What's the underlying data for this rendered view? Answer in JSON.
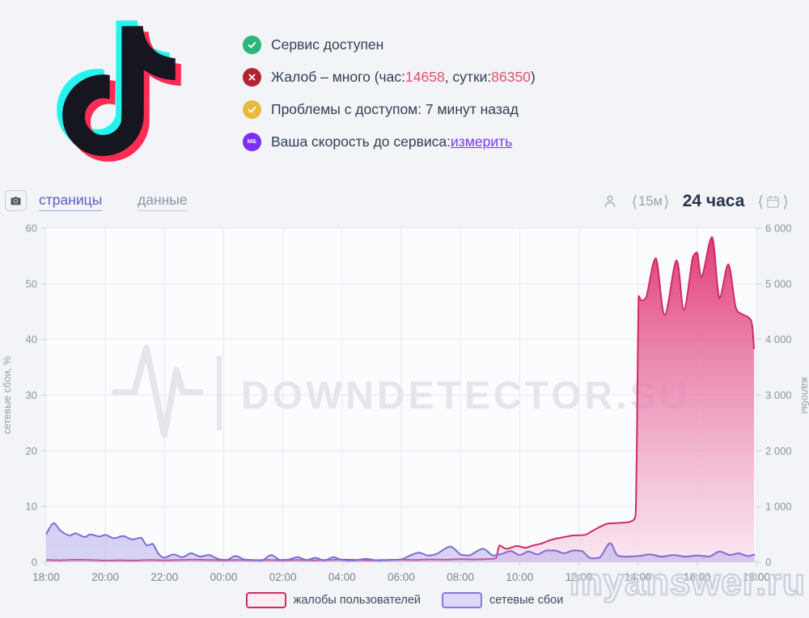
{
  "service": {
    "name": "TikTok"
  },
  "logo_colors": {
    "cyan": "#25f4ee",
    "red": "#fe2c55",
    "black": "#15161f"
  },
  "status": {
    "items": [
      {
        "icon": "check",
        "icon_color": "#2db57a",
        "text": "Сервис доступен"
      },
      {
        "icon": "cross",
        "icon_color": "#b22430",
        "text_prefix": "Жалоб – много (час: ",
        "hour_value": "14658",
        "text_mid": ", сутки: ",
        "day_value": "86350",
        "text_suffix": ")",
        "value_color": "#e0506e"
      },
      {
        "icon": "check",
        "icon_color": "#e9b93e",
        "text": "Проблемы с доступом: 7 минут назад"
      },
      {
        "icon": "speed-badge",
        "icon_color": "#7a2ff2",
        "badge_text": "МБ",
        "text": "Ваша скорость до сервиса: ",
        "link": "измерить"
      }
    ]
  },
  "toolbar": {
    "tabs": [
      {
        "label": "страницы",
        "active": true
      },
      {
        "label": "данные",
        "active": false
      }
    ],
    "interval_label": "15м",
    "range_label": "24 часа",
    "bracket_left": "⟨",
    "bracket_right": "⟩"
  },
  "legend": [
    {
      "label": "жалобы пользователей",
      "border": "#cf2b64",
      "fill": "#fcedf3"
    },
    {
      "label": "сетевые сбои",
      "border": "#8979dd",
      "fill": "#ded7f6"
    }
  ],
  "watermarks": {
    "chart": "DOWNDETECTOR.SU",
    "photo": "myanswer.ru"
  },
  "chart_data": {
    "type": "area",
    "x_ticks": [
      "18:00",
      "20:00",
      "22:00",
      "00:00",
      "02:00",
      "04:00",
      "06:00",
      "08:00",
      "10:00",
      "12:00",
      "14:00",
      "16:00",
      "18:00"
    ],
    "x_range_hours": [
      0,
      24
    ],
    "grid": true,
    "legend_position": "bottom",
    "left_axis": {
      "title": "сетевые сбои, %",
      "min": 0,
      "max": 60,
      "ticks": [
        "0",
        "10",
        "20",
        "30",
        "40",
        "50",
        "60"
      ]
    },
    "right_axis": {
      "title": "жалобы",
      "min": 0,
      "max": 6000,
      "ticks": [
        "0",
        "1 000",
        "2 000",
        "3 000",
        "4 000",
        "5 000",
        "6 000"
      ]
    },
    "series": [
      {
        "name": "жалобы пользователей",
        "axis": "right",
        "stroke": "#cf2b64",
        "gradient": [
          [
            "0",
            "rgba(223,47,109,0.95)"
          ],
          [
            "0.4",
            "rgba(231,107,157,0.78)"
          ],
          [
            "0.75",
            "rgba(242,183,210,0.8)"
          ],
          [
            "1",
            "rgba(249,230,240,0.9)"
          ]
        ],
        "points": [
          [
            0,
            40
          ],
          [
            0.5,
            35
          ],
          [
            1,
            45
          ],
          [
            1.5,
            40
          ],
          [
            2,
            30
          ],
          [
            2.5,
            35
          ],
          [
            3,
            30
          ],
          [
            3.5,
            40
          ],
          [
            4,
            35
          ],
          [
            4.5,
            40
          ],
          [
            5,
            45
          ],
          [
            5.5,
            40
          ],
          [
            6,
            35
          ],
          [
            6.5,
            40
          ],
          [
            7,
            35
          ],
          [
            7.5,
            40
          ],
          [
            8,
            35
          ],
          [
            8.5,
            40
          ],
          [
            9,
            35
          ],
          [
            9.5,
            40
          ],
          [
            10,
            45
          ],
          [
            10.5,
            40
          ],
          [
            11,
            35
          ],
          [
            11.5,
            40
          ],
          [
            12,
            45
          ],
          [
            12.5,
            40
          ],
          [
            13,
            50
          ],
          [
            13.5,
            45
          ],
          [
            14,
            55
          ],
          [
            14.5,
            50
          ],
          [
            15,
            60
          ],
          [
            15.2,
            70
          ],
          [
            15.32,
            300
          ],
          [
            15.55,
            240
          ],
          [
            15.9,
            290
          ],
          [
            16.2,
            260
          ],
          [
            16.45,
            300
          ],
          [
            16.7,
            330
          ],
          [
            17,
            390
          ],
          [
            17.2,
            420
          ],
          [
            17.5,
            450
          ],
          [
            17.8,
            480
          ],
          [
            18.2,
            490
          ],
          [
            18.45,
            560
          ],
          [
            18.7,
            630
          ],
          [
            18.95,
            690
          ],
          [
            19.2,
            700
          ],
          [
            19.5,
            710
          ],
          [
            19.75,
            730
          ],
          [
            19.92,
            850
          ],
          [
            20.02,
            4780
          ],
          [
            20.12,
            4700
          ],
          [
            20.28,
            4760
          ],
          [
            20.6,
            5460
          ],
          [
            20.9,
            4440
          ],
          [
            21.3,
            5420
          ],
          [
            21.55,
            4530
          ],
          [
            21.85,
            5480
          ],
          [
            22,
            5560
          ],
          [
            22.15,
            5120
          ],
          [
            22.5,
            5840
          ],
          [
            22.75,
            4740
          ],
          [
            23.05,
            5350
          ],
          [
            23.3,
            4580
          ],
          [
            23.5,
            4460
          ],
          [
            23.72,
            4400
          ],
          [
            23.85,
            4280
          ],
          [
            23.92,
            3830
          ]
        ]
      },
      {
        "name": "сетевые сбои",
        "axis": "left",
        "stroke": "#7f6dd2",
        "gradient": [
          [
            "0",
            "rgba(139,123,220,0.58)"
          ],
          [
            "1",
            "rgba(169,155,234,0.42)"
          ]
        ],
        "points": [
          [
            0,
            5
          ],
          [
            0.25,
            7
          ],
          [
            0.5,
            5.6
          ],
          [
            0.8,
            4.8
          ],
          [
            1,
            5.2
          ],
          [
            1.3,
            4.5
          ],
          [
            1.5,
            5
          ],
          [
            1.8,
            4.6
          ],
          [
            2,
            4.9
          ],
          [
            2.3,
            4.3
          ],
          [
            2.6,
            4.7
          ],
          [
            2.9,
            4.1
          ],
          [
            3.2,
            4.4
          ],
          [
            3.4,
            3
          ],
          [
            3.6,
            3.3
          ],
          [
            3.8,
            1.5
          ],
          [
            4,
            0.8
          ],
          [
            4.3,
            1.4
          ],
          [
            4.6,
            0.9
          ],
          [
            4.9,
            1.6
          ],
          [
            5.2,
            1
          ],
          [
            5.5,
            1.3
          ],
          [
            5.8,
            0.6
          ],
          [
            6.1,
            0.4
          ],
          [
            6.4,
            1.1
          ],
          [
            6.7,
            0.5
          ],
          [
            7,
            0.4
          ],
          [
            7.3,
            0.3
          ],
          [
            7.6,
            1.3
          ],
          [
            7.9,
            0.4
          ],
          [
            8.2,
            0.5
          ],
          [
            8.5,
            0.9
          ],
          [
            8.8,
            0.4
          ],
          [
            9.1,
            0.8
          ],
          [
            9.4,
            0.3
          ],
          [
            9.7,
            0.9
          ],
          [
            10,
            0.4
          ],
          [
            10.4,
            0.3
          ],
          [
            10.8,
            0.6
          ],
          [
            11.2,
            0.3
          ],
          [
            11.6,
            0.4
          ],
          [
            12,
            0.5
          ],
          [
            12.3,
            1.2
          ],
          [
            12.6,
            1.7
          ],
          [
            12.9,
            1.2
          ],
          [
            13.2,
            1.5
          ],
          [
            13.65,
            2.8
          ],
          [
            14,
            1.4
          ],
          [
            14.3,
            1.2
          ],
          [
            14.75,
            2.4
          ],
          [
            15.1,
            1.2
          ],
          [
            15.4,
            1.5
          ],
          [
            15.7,
            2
          ],
          [
            16,
            1.3
          ],
          [
            16.3,
            1.9
          ],
          [
            16.6,
            1.4
          ],
          [
            16.9,
            2.1
          ],
          [
            17.2,
            2.1
          ],
          [
            17.5,
            1.6
          ],
          [
            17.8,
            2.1
          ],
          [
            18.1,
            2
          ],
          [
            18.4,
            0.7
          ],
          [
            18.7,
            0.8
          ],
          [
            19.05,
            3.4
          ],
          [
            19.3,
            1.2
          ],
          [
            19.6,
            1
          ],
          [
            20,
            1.1
          ],
          [
            20.4,
            1.4
          ],
          [
            20.8,
            1
          ],
          [
            21.2,
            1.3
          ],
          [
            21.6,
            1
          ],
          [
            22,
            1.2
          ],
          [
            22.4,
            1
          ],
          [
            22.75,
            1.9
          ],
          [
            23.1,
            1.3
          ],
          [
            23.4,
            1.6
          ],
          [
            23.7,
            1.1
          ],
          [
            23.95,
            1.4
          ]
        ]
      }
    ]
  }
}
